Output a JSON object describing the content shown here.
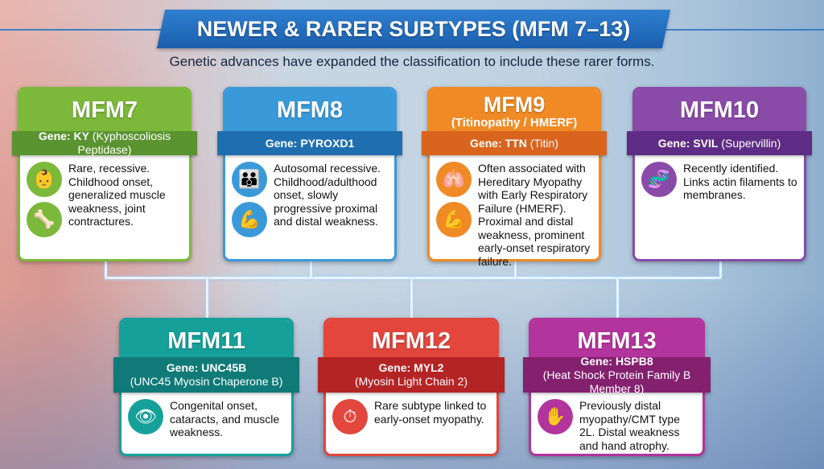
{
  "title": "NEWER & RARER SUBTYPES (MFM 7–13)",
  "subtitle": "Genetic advances have expanded the classification to include these rarer forms.",
  "cards": [
    {
      "name": "MFM7",
      "alias": "",
      "gene_label": "Gene:",
      "gene": "KY",
      "gene_full": "(Kyphoscoliosis Peptidase)",
      "desc": "Rare, recessive. Childhood onset, generalized muscle weakness, joint contractures.",
      "color": "#7cb83a",
      "band": "#5a9430",
      "icons": [
        "baby-icon",
        "knee-joint-icon"
      ]
    },
    {
      "name": "MFM8",
      "alias": "",
      "gene_label": "Gene:",
      "gene": "PYROXD1",
      "gene_full": "",
      "desc": "Autosomal recessive. Childhood/adulthood onset, slowly progressive proximal and distal weakness.",
      "color": "#3a9ad9",
      "band": "#1f6fb0",
      "icons": [
        "child-adult-icon",
        "muscle-icon"
      ]
    },
    {
      "name": "MFM9",
      "alias": "(Titinopathy / HMERF)",
      "gene_label": "Gene:",
      "gene": "TTN",
      "gene_full": "(Titin)",
      "desc": "Often associated with Hereditary Myopathy with Early Respiratory Failure (HMERF). Proximal and distal weakness, prominent early-onset respiratory failure.",
      "color": "#f08a24",
      "band": "#d9641e",
      "icons": [
        "lungs-icon",
        "muscle-icon"
      ]
    },
    {
      "name": "MFM10",
      "alias": "",
      "gene_label": "Gene:",
      "gene": "SVIL",
      "gene_full": "(Supervillin)",
      "desc": "Recently identified. Links actin filaments to membranes.",
      "color": "#8a4aa8",
      "band": "#5f2c85",
      "icons": [
        "protein-filament-icon"
      ]
    },
    {
      "name": "MFM11",
      "alias": "",
      "gene_label": "Gene:",
      "gene": "UNC45B",
      "gene_full": "(UNC45 Myosin Chaperone B)",
      "desc": "Congenital onset, cataracts, and muscle weakness.",
      "color": "#16a09a",
      "band": "#0f7a78",
      "icons": [
        "infant-eye-icon"
      ]
    },
    {
      "name": "MFM12",
      "alias": "",
      "gene_label": "Gene:",
      "gene": "MYL2",
      "gene_full": "(Myosin Light Chain 2)",
      "desc": "Rare subtype linked to early-onset myopathy.",
      "color": "#e2463c",
      "band": "#b52424",
      "icons": [
        "clock-muscle-icon"
      ]
    },
    {
      "name": "MFM13",
      "alias": "",
      "gene_label": "Gene:",
      "gene": "HSPB8",
      "gene_full": "(Heat Shock Protein Family B Member 8)",
      "desc": "Previously distal myopathy/CMT type 2L. Distal weakness and hand atrophy.",
      "color": "#b3349c",
      "band": "#84216f",
      "icons": [
        "hand-icon"
      ]
    }
  ]
}
